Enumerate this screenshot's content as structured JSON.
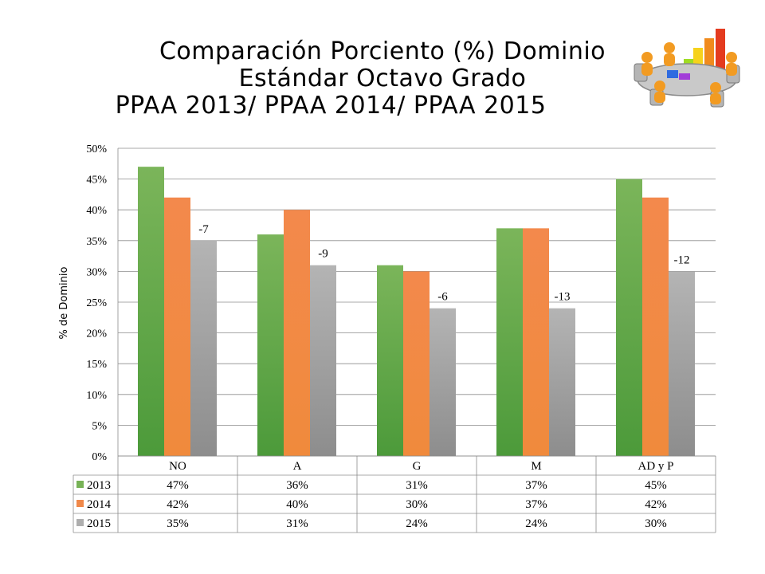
{
  "title": {
    "line1": "Comparación Porciento (%) Dominio",
    "line2": "Estándar Octavo Grado",
    "line3": "PPAA 2013/ PPAA 2014/ PPAA 2015"
  },
  "illustration_icon": "meeting-table-bar-chart-icon",
  "chart_data": {
    "type": "bar",
    "categories": [
      "NO",
      "A",
      "G",
      "M",
      "AD y P"
    ],
    "series": [
      {
        "name": "2013",
        "values": [
          47,
          36,
          31,
          37,
          45
        ],
        "labels": [
          "47%",
          "36%",
          "31%",
          "37%",
          "45%"
        ],
        "color": "#77b256"
      },
      {
        "name": "2014",
        "values": [
          42,
          40,
          30,
          37,
          42
        ],
        "labels": [
          "42%",
          "40%",
          "30%",
          "37%",
          "42%"
        ],
        "color": "#f0894a"
      },
      {
        "name": "2015",
        "values": [
          35,
          31,
          24,
          24,
          30
        ],
        "labels": [
          "35%",
          "31%",
          "24%",
          "24%",
          "30%"
        ],
        "color": "#aeaeae"
      }
    ],
    "annotations": [
      "-7",
      "-9",
      "-6",
      "-13",
      "-12"
    ],
    "ylabel": "% de Dominio",
    "xlabel": "",
    "ylim": [
      0,
      50
    ],
    "yticks": [
      "0%",
      "5%",
      "10%",
      "15%",
      "20%",
      "25%",
      "30%",
      "35%",
      "40%",
      "45%",
      "50%"
    ],
    "grid": true,
    "legend": "data-table"
  }
}
